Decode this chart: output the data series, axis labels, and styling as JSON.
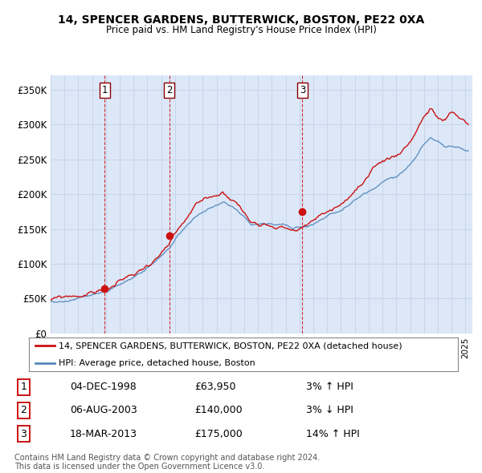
{
  "title": "14, SPENCER GARDENS, BUTTERWICK, BOSTON, PE22 0XA",
  "subtitle": "Price paid vs. HM Land Registry's House Price Index (HPI)",
  "ylabel_ticks": [
    "£0",
    "£50K",
    "£100K",
    "£150K",
    "£200K",
    "£250K",
    "£300K",
    "£350K"
  ],
  "ytick_values": [
    0,
    50000,
    100000,
    150000,
    200000,
    250000,
    300000,
    350000
  ],
  "ylim": [
    0,
    370000
  ],
  "xlim_start": 1995.0,
  "xlim_end": 2025.5,
  "grid_color": "#c8d4e8",
  "background_color": "#dce8f8",
  "hpi_color": "#5588bb",
  "price_color": "#cc1111",
  "vline_color": "#cc1111",
  "sale_points": [
    {
      "year": 1998.92,
      "price": 63950,
      "label": "1"
    },
    {
      "year": 2003.58,
      "price": 140000,
      "label": "2"
    },
    {
      "year": 2013.21,
      "price": 175000,
      "label": "3"
    }
  ],
  "legend_property_label": "14, SPENCER GARDENS, BUTTERWICK, BOSTON, PE22 0XA (detached house)",
  "legend_hpi_label": "HPI: Average price, detached house, Boston",
  "table_rows": [
    {
      "num": "1",
      "date": "04-DEC-1998",
      "price": "£63,950",
      "hpi": "3% ↑ HPI"
    },
    {
      "num": "2",
      "date": "06-AUG-2003",
      "price": "£140,000",
      "hpi": "3% ↓ HPI"
    },
    {
      "num": "3",
      "date": "18-MAR-2013",
      "price": "£175,000",
      "hpi": "14% ↑ HPI"
    }
  ],
  "footnote1": "Contains HM Land Registry data © Crown copyright and database right 2024.",
  "footnote2": "This data is licensed under the Open Government Licence v3.0."
}
